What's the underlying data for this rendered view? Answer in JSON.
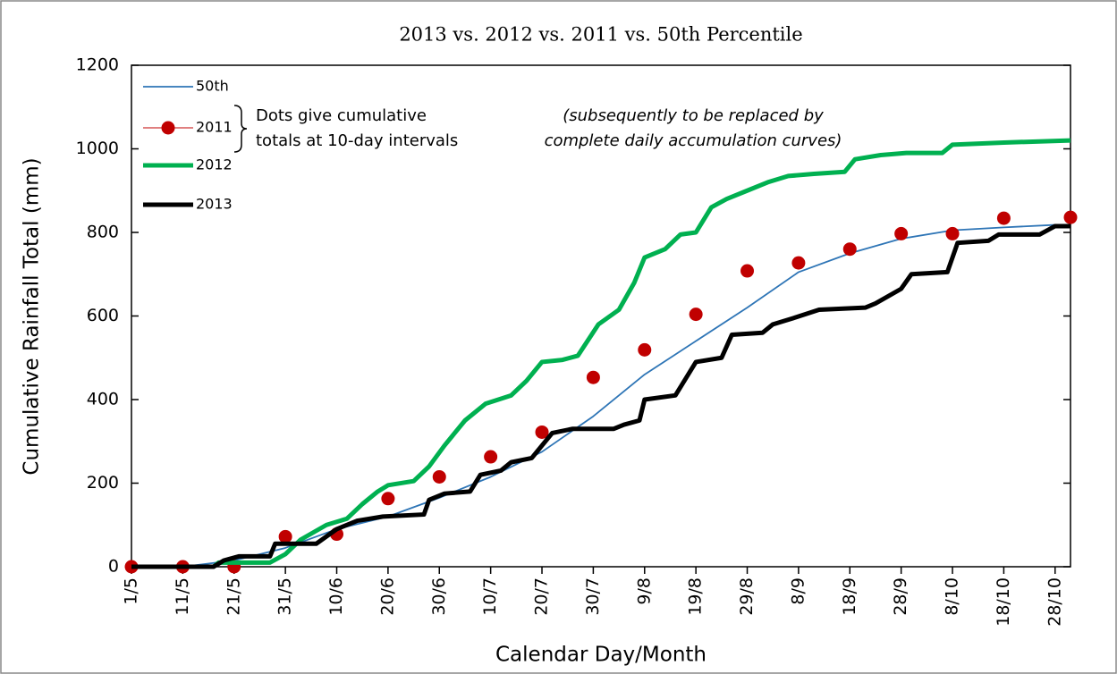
{
  "chart_data": {
    "type": "line",
    "title": "2013 vs. 2012 vs. 2011 vs. 50th Percentile",
    "x_label": "Calendar Day/Month",
    "y_label": "Cumulative Rainfall Total (mm)",
    "annotations": [
      [
        "Dots give cumulative",
        "totals at 10-day intervals"
      ],
      [
        "(subsequently to be replaced by",
        "complete daily accumulation curves)"
      ]
    ],
    "xlim": [
      "1/5",
      "31/10"
    ],
    "xticks": [
      "1/5",
      "11/5",
      "21/5",
      "31/5",
      "10/6",
      "20/6",
      "30/6",
      "10/7",
      "20/7",
      "30/7",
      "9/8",
      "19/8",
      "29/8",
      "8/9",
      "18/9",
      "28/9",
      "8/10",
      "18/10",
      "28/10"
    ],
    "ylim": [
      0,
      1200
    ],
    "yticks": [
      0,
      200,
      400,
      600,
      800,
      1000,
      1200
    ],
    "series": [
      {
        "name": "50th",
        "color": "#2e75b6",
        "width": 1.8,
        "marker": false,
        "x": [
          "1/5",
          "11/5",
          "21/5",
          "31/5",
          "10/6",
          "20/6",
          "30/6",
          "10/7",
          "20/7",
          "30/7",
          "9/8",
          "19/8",
          "29/8",
          "8/9",
          "18/9",
          "28/9",
          "8/10",
          "18/10",
          "28/10",
          "31/10"
        ],
        "values": [
          0,
          0,
          15,
          45,
          90,
          120,
          165,
          215,
          275,
          360,
          460,
          540,
          620,
          705,
          750,
          785,
          805,
          812,
          818,
          818
        ]
      },
      {
        "name": "2011",
        "color": "#c00000",
        "width": 1,
        "marker": true,
        "x": [
          "1/5",
          "11/5",
          "21/5",
          "31/5",
          "10/6",
          "20/6",
          "30/6",
          "10/7",
          "20/7",
          "30/7",
          "9/8",
          "19/8",
          "29/8",
          "8/9",
          "18/9",
          "28/9",
          "8/10",
          "18/10",
          "31/10"
        ],
        "values": [
          0,
          0,
          0,
          72,
          78,
          163,
          215,
          263,
          322,
          453,
          519,
          604,
          708,
          727,
          760,
          797,
          797,
          834,
          836
        ]
      },
      {
        "name": "2012",
        "color": "#00b050",
        "width": 5,
        "marker": false,
        "x": [
          "1/5",
          "17/5",
          "18/5",
          "28/5",
          "31/5",
          "3/6",
          "8/6",
          "12/6",
          "15/6",
          "18/6",
          "20/6",
          "25/6",
          "28/6",
          "1/7",
          "5/7",
          "9/7",
          "14/7",
          "17/7",
          "20/7",
          "24/7",
          "27/7",
          "31/7",
          "4/8",
          "7/8",
          "9/8",
          "13/8",
          "16/8",
          "19/8",
          "22/8",
          "25/8",
          "29/8",
          "2/9",
          "6/9",
          "11/9",
          "17/9",
          "19/9",
          "24/9",
          "29/9",
          "6/10",
          "8/10",
          "18/10",
          "31/10"
        ],
        "values": [
          0,
          0,
          10,
          10,
          30,
          65,
          100,
          115,
          150,
          180,
          195,
          205,
          240,
          290,
          350,
          390,
          410,
          445,
          490,
          495,
          505,
          580,
          615,
          680,
          740,
          760,
          795,
          800,
          860,
          880,
          900,
          920,
          935,
          940,
          945,
          975,
          985,
          990,
          990,
          1010,
          1015,
          1020
        ]
      },
      {
        "name": "2013",
        "color": "#000000",
        "width": 5,
        "marker": false,
        "x": [
          "1/5",
          "17/5",
          "19/5",
          "22/5",
          "28/5",
          "29/5",
          "6/6",
          "10/6",
          "14/6",
          "19/6",
          "27/6",
          "28/6",
          "1/7",
          "6/7",
          "8/7",
          "12/7",
          "14/7",
          "18/7",
          "22/7",
          "26/7",
          "3/8",
          "5/8",
          "8/8",
          "9/8",
          "15/8",
          "17/8",
          "19/8",
          "24/8",
          "26/8",
          "1/9",
          "3/9",
          "7/9",
          "12/9",
          "21/9",
          "23/9",
          "28/9",
          "30/9",
          "7/10",
          "9/10",
          "15/10",
          "17/10",
          "25/10",
          "28/10",
          "31/10"
        ],
        "values": [
          0,
          0,
          15,
          25,
          25,
          55,
          55,
          90,
          110,
          120,
          125,
          160,
          175,
          180,
          220,
          230,
          250,
          260,
          320,
          330,
          330,
          340,
          350,
          400,
          410,
          450,
          490,
          500,
          555,
          560,
          580,
          595,
          615,
          620,
          630,
          665,
          700,
          705,
          775,
          780,
          795,
          795,
          815,
          815
        ]
      }
    ]
  }
}
